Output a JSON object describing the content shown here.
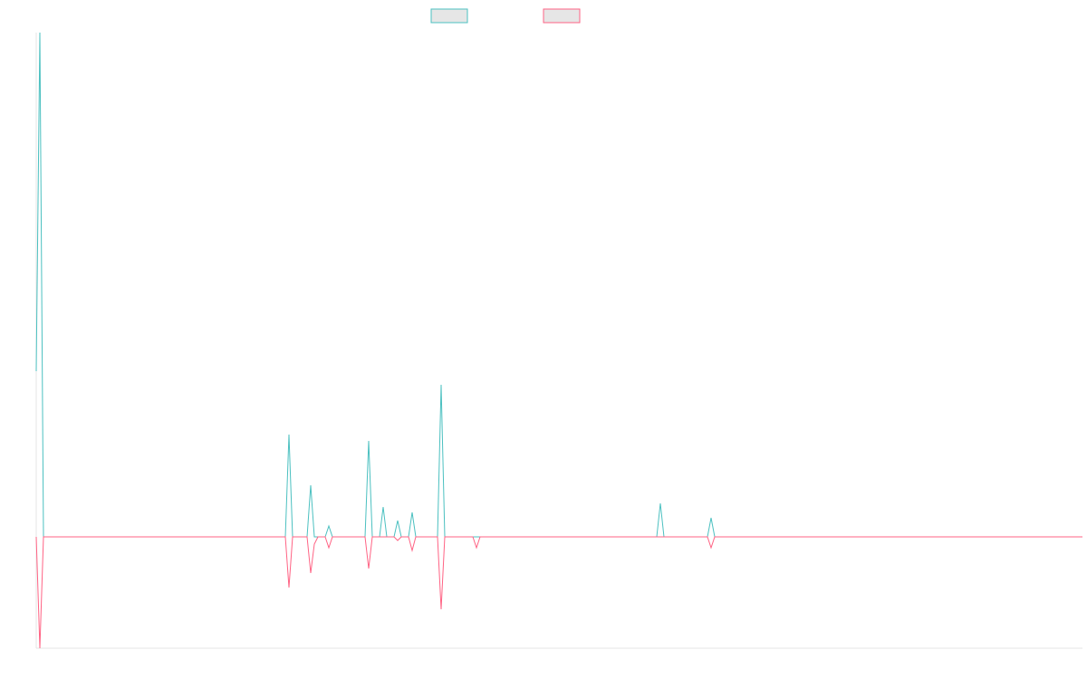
{
  "chart_data": {
    "type": "line",
    "xlim": [
      0,
      1155
    ],
    "ylim": [
      -123,
      557
    ],
    "legend": "top",
    "series": [
      {
        "color": "#4bc0c0",
        "x": [
          0,
          4,
          8,
          275,
          279,
          283,
          299,
          303,
          307,
          319,
          323,
          327,
          363,
          367,
          371,
          379,
          383,
          387,
          395,
          399,
          403,
          411,
          415,
          419,
          443,
          447,
          451,
          685,
          689,
          693,
          741,
          745,
          749,
          1155
        ],
        "values": [
          183,
          557,
          0,
          0,
          113,
          0,
          0,
          57,
          0,
          0,
          12,
          0,
          0,
          106,
          0,
          0,
          33,
          0,
          0,
          18,
          0,
          0,
          27,
          0,
          0,
          168,
          0,
          0,
          37,
          0,
          0,
          21,
          0,
          0
        ]
      },
      {
        "color": "#ff6384",
        "x": [
          0,
          4,
          8,
          275,
          279,
          283,
          299,
          303,
          307,
          311,
          319,
          323,
          327,
          363,
          367,
          371,
          395,
          399,
          403,
          411,
          415,
          419,
          443,
          447,
          451,
          482,
          486,
          490,
          741,
          745,
          749,
          1155
        ],
        "values": [
          0,
          -123,
          0,
          0,
          -56,
          0,
          0,
          -40,
          -8,
          0,
          0,
          -12,
          0,
          0,
          -35,
          0,
          0,
          -4,
          0,
          0,
          -15,
          0,
          0,
          -80,
          0,
          0,
          -12,
          0,
          0,
          -12,
          0,
          0
        ]
      }
    ]
  }
}
